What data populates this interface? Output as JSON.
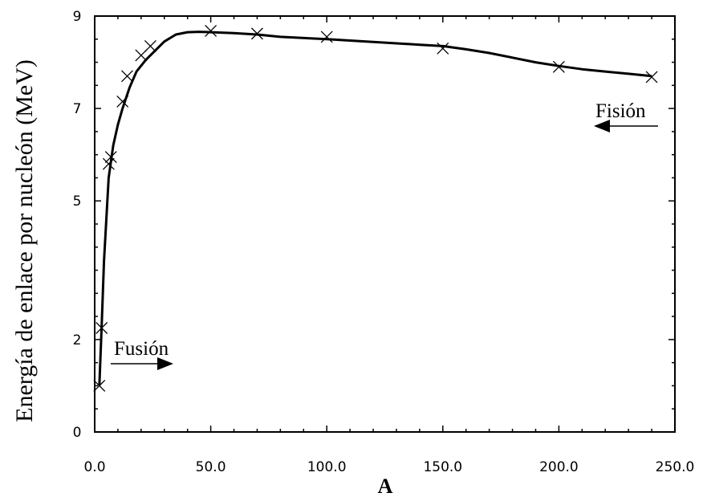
{
  "chart_data": {
    "type": "scatter",
    "title": "",
    "xlabel": "A",
    "ylabel": "Energía de enlace por nucleón (MeV)",
    "xlim": [
      0,
      250
    ],
    "ylim": [
      0,
      9
    ],
    "grid": false,
    "x_ticks": [
      0,
      50,
      100,
      150,
      200,
      250
    ],
    "x_tick_labels": [
      "0.0",
      "50.0",
      "100.0",
      "150.0",
      "200.0",
      "250.0"
    ],
    "y_ticks": [
      0,
      2,
      5,
      7,
      9
    ],
    "y_tick_labels": [
      "0",
      "2",
      "5",
      "7",
      "9"
    ],
    "series": [
      {
        "marker": "x",
        "x": [
          2,
          3,
          6,
          7,
          12,
          14,
          20,
          24,
          50,
          70,
          100,
          150,
          200,
          240
        ],
        "y": [
          1.0,
          2.25,
          5.8,
          5.95,
          7.15,
          7.7,
          8.15,
          8.35,
          8.68,
          8.62,
          8.55,
          8.3,
          7.9,
          7.68
        ]
      },
      {
        "style": "line",
        "x": [
          2,
          3,
          4,
          6,
          8,
          10,
          12,
          15,
          18,
          22,
          26,
          30,
          35,
          40,
          45,
          50,
          60,
          70,
          80,
          100,
          120,
          140,
          150,
          160,
          170,
          180,
          190,
          200,
          210,
          220,
          230,
          240
        ],
        "y": [
          1.0,
          2.3,
          3.7,
          5.5,
          6.2,
          6.65,
          7.0,
          7.45,
          7.8,
          8.05,
          8.25,
          8.45,
          8.6,
          8.65,
          8.66,
          8.65,
          8.63,
          8.6,
          8.55,
          8.5,
          8.44,
          8.38,
          8.35,
          8.28,
          8.2,
          8.1,
          8.0,
          7.92,
          7.85,
          7.8,
          7.75,
          7.7
        ]
      }
    ],
    "annotations": [
      {
        "text": "Fusión",
        "arrow_direction": "right"
      },
      {
        "text": "Fisión",
        "arrow_direction": "left"
      }
    ]
  }
}
